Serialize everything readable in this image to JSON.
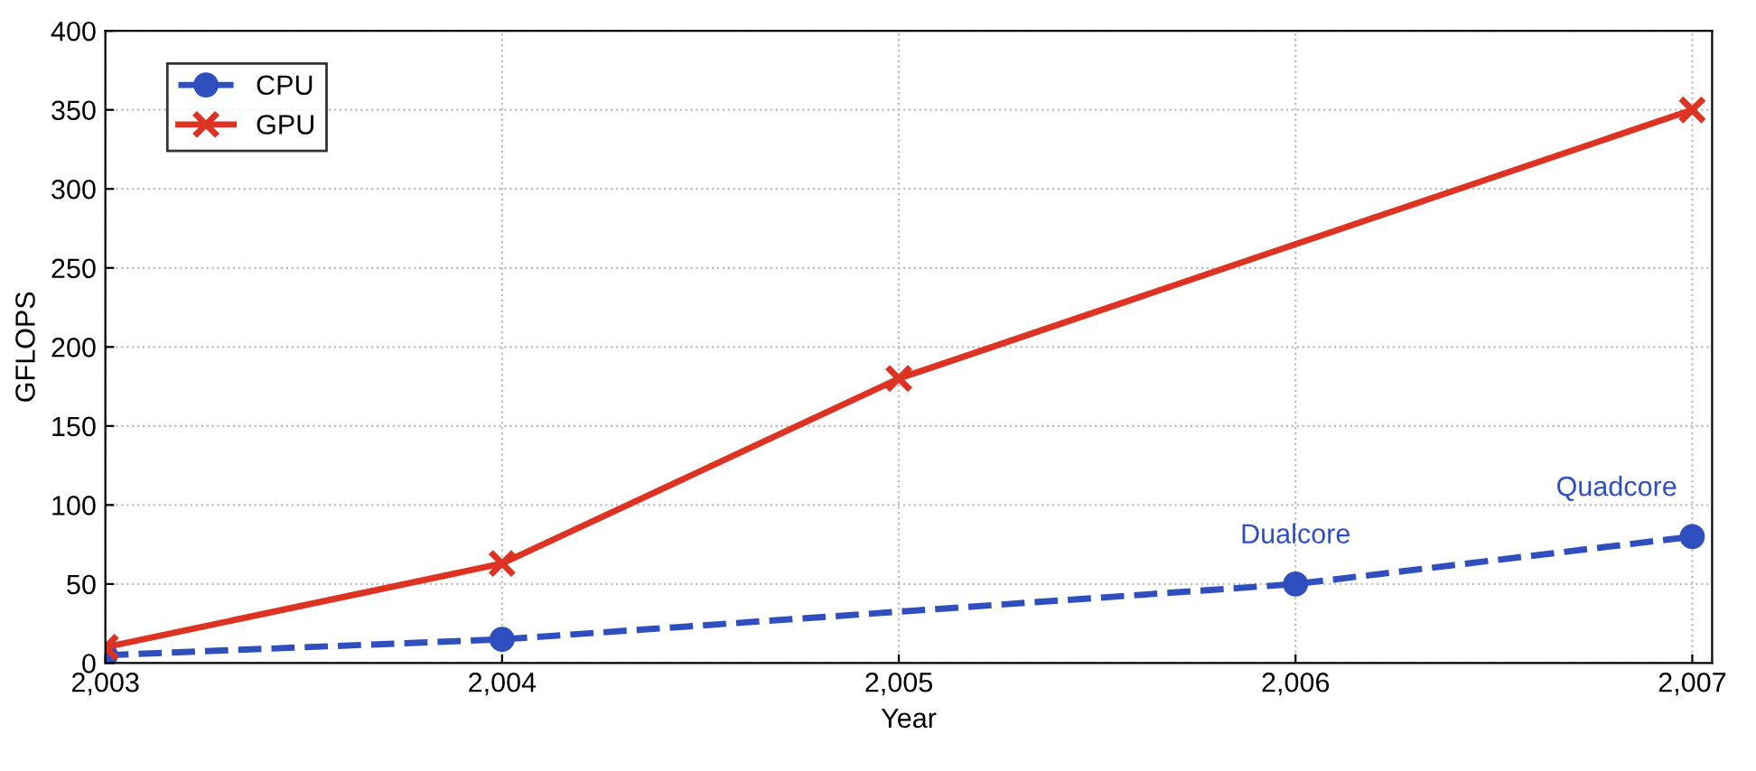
{
  "chart_data": {
    "type": "line",
    "xlabel": "Year",
    "ylabel": "GFLOPS",
    "series": [
      {
        "name": "CPU",
        "color": "#2f4fbf",
        "x": [
          2003,
          2004,
          2006,
          2007
        ],
        "values": [
          5,
          15,
          50,
          80
        ],
        "marker": "circle",
        "line_style": "dashed"
      },
      {
        "name": "GPU",
        "color": "#dd3322",
        "x": [
          2003,
          2004,
          2005,
          2007
        ],
        "values": [
          10,
          63,
          180,
          350
        ],
        "marker": "cross",
        "line_style": "solid"
      }
    ],
    "annotations": [
      {
        "text": "Dualcore",
        "x": 2006,
        "y": 50
      },
      {
        "text": "Quadcore",
        "x": 2007,
        "y": 80
      }
    ],
    "xlim": [
      2003,
      2007.05
    ],
    "xticks": [
      {
        "value": 2003,
        "label": "2,003"
      },
      {
        "value": 2004,
        "label": "2,004"
      },
      {
        "value": 2005,
        "label": "2,005"
      },
      {
        "value": 2006,
        "label": "2,006"
      },
      {
        "value": 2007,
        "label": "2,007"
      }
    ],
    "ylim": [
      0,
      400
    ],
    "yticks": [
      0,
      50,
      100,
      150,
      200,
      250,
      300,
      350,
      400
    ],
    "grid": true,
    "legend": "top left"
  }
}
